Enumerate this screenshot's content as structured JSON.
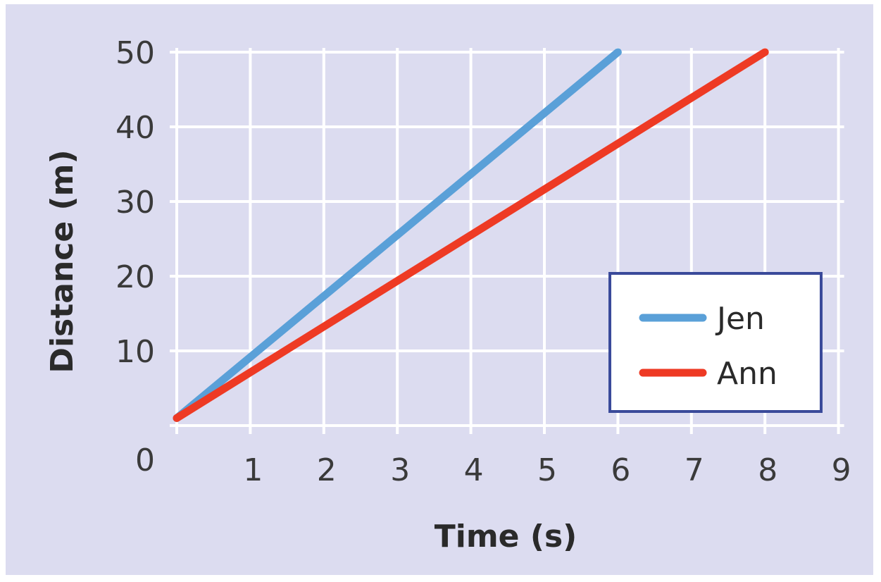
{
  "chart_data": {
    "type": "line",
    "xlabel": "Time (s)",
    "ylabel": "Distance (m)",
    "xlim": [
      0,
      9
    ],
    "ylim": [
      0,
      50
    ],
    "x_ticks": [
      1,
      2,
      3,
      4,
      5,
      6,
      7,
      8,
      9
    ],
    "y_ticks": [
      0,
      10,
      20,
      30,
      40,
      50
    ],
    "grid": true,
    "legend_position": "right",
    "series": [
      {
        "name": "Jen",
        "color": "#5aa0d8",
        "x": [
          0,
          6
        ],
        "y": [
          1,
          50
        ]
      },
      {
        "name": "Ann",
        "color": "#ee3a24",
        "x": [
          0,
          8
        ],
        "y": [
          1,
          50
        ]
      }
    ],
    "colors": {
      "background": "#dcdcf0",
      "grid": "#ffffff",
      "legend_border": "#3a4a9a"
    }
  }
}
